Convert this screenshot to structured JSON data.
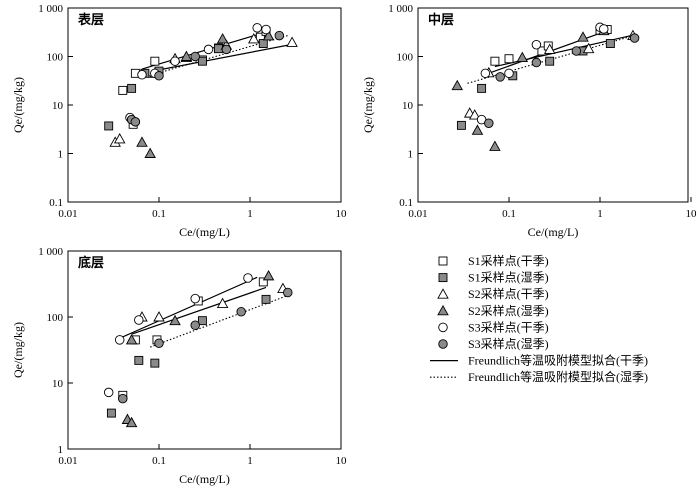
{
  "chart_data": [
    {
      "type": "scatter",
      "title": "表层",
      "xlabel": "Ce/(mg/L)",
      "ylabel": "Qe/(mg/kg)",
      "x_scale": "log",
      "y_scale": "log",
      "xlim": [
        0.01,
        10
      ],
      "ylim": [
        0.1,
        1000
      ],
      "x_ticks": [
        "0.01",
        "0.1",
        "1",
        "10"
      ],
      "y_ticks": [
        "0.1",
        "1",
        "10",
        "100",
        "1 000"
      ],
      "series": [
        {
          "name": "S1采样点(干季)",
          "points": [
            [
              0.04,
              20
            ],
            [
              0.052,
              4
            ],
            [
              0.055,
              45
            ],
            [
              0.09,
              80
            ],
            [
              0.3,
              85
            ],
            [
              0.45,
              150
            ],
            [
              1.3,
              250
            ],
            [
              1.5,
              330
            ]
          ]
        },
        {
          "name": "S1采样点(湿季)",
          "points": [
            [
              0.028,
              3.7
            ],
            [
              0.05,
              22
            ],
            [
              0.07,
              45
            ],
            [
              0.1,
              50
            ],
            [
              0.3,
              80
            ],
            [
              0.45,
              145
            ],
            [
              1.4,
              185
            ]
          ]
        },
        {
          "name": "S2采样点(干季)",
          "points": [
            [
              0.033,
              1.7
            ],
            [
              0.037,
              2.0
            ],
            [
              0.15,
              90
            ],
            [
              0.2,
              95
            ],
            [
              0.55,
              170
            ],
            [
              1.1,
              230
            ],
            [
              2.9,
              195
            ]
          ]
        },
        {
          "name": "S2采样点(湿季)",
          "points": [
            [
              0.065,
              1.7
            ],
            [
              0.08,
              1.0
            ],
            [
              0.09,
              45
            ],
            [
              0.2,
              100
            ],
            [
              0.5,
              230
            ],
            [
              1.6,
              265
            ]
          ]
        },
        {
          "name": "S3采样点(干季)",
          "points": [
            [
              0.048,
              5.5
            ],
            [
              0.055,
              4.5
            ],
            [
              0.065,
              42
            ],
            [
              0.09,
              45
            ],
            [
              0.15,
              80
            ],
            [
              0.35,
              140
            ],
            [
              1.2,
              390
            ],
            [
              1.5,
              360
            ]
          ]
        },
        {
          "name": "S3采样点(湿季)",
          "points": [
            [
              0.05,
              5
            ],
            [
              0.055,
              4.5
            ],
            [
              0.1,
              40
            ],
            [
              0.25,
              100
            ],
            [
              0.55,
              140
            ],
            [
              2.1,
              270
            ]
          ]
        }
      ],
      "fit_lines": [
        {
          "name": "Freundlich等温吸附模型拟合(干季)",
          "style": "solid",
          "segments": [
            [
              [
                0.065,
                55
              ],
              [
                1.6,
                330
              ]
            ],
            [
              [
                0.085,
                50
              ],
              [
                3.0,
                180
              ]
            ]
          ]
        },
        {
          "name": "Freundlich等温吸附模型拟合(湿季)",
          "style": "dotted",
          "segments": [
            [
              [
                0.07,
                38
              ],
              [
                2.6,
                270
              ]
            ]
          ]
        }
      ]
    },
    {
      "type": "scatter",
      "title": "中层",
      "xlabel": "Ce/(mg/L)",
      "ylabel": "Qe/(mg/kg)",
      "x_scale": "log",
      "y_scale": "log",
      "xlim": [
        0.01,
        10
      ],
      "ylim": [
        0.1,
        1000
      ],
      "x_ticks": [
        "0.01",
        "0.1",
        "1",
        "10"
      ],
      "y_ticks": [
        "0.1",
        "1",
        "10",
        "100",
        "1 000"
      ],
      "series": [
        {
          "name": "S1采样点(干季)",
          "points": [
            [
              0.07,
              80
            ],
            [
              0.1,
              90
            ],
            [
              0.23,
              130
            ],
            [
              0.27,
              165
            ],
            [
              1.0,
              350
            ],
            [
              1.2,
              360
            ]
          ]
        },
        {
          "name": "S1采样点(湿季)",
          "points": [
            [
              0.03,
              3.8
            ],
            [
              0.05,
              22
            ],
            [
              0.11,
              40
            ],
            [
              0.28,
              80
            ],
            [
              0.65,
              130
            ],
            [
              1.3,
              185
            ]
          ]
        },
        {
          "name": "S2采样点(干季)",
          "points": [
            [
              0.037,
              6.8
            ],
            [
              0.042,
              6.2
            ],
            [
              0.06,
              46
            ],
            [
              0.28,
              140
            ],
            [
              0.75,
              145
            ],
            [
              2.3,
              270
            ]
          ]
        },
        {
          "name": "S2采样点(湿季)",
          "points": [
            [
              0.027,
              25
            ],
            [
              0.045,
              3.0
            ],
            [
              0.07,
              1.4
            ],
            [
              0.14,
              95
            ],
            [
              0.65,
              250
            ],
            [
              1.1,
              340
            ]
          ]
        },
        {
          "name": "S3采样点(干季)",
          "points": [
            [
              0.05,
              5
            ],
            [
              0.055,
              45
            ],
            [
              0.1,
              45
            ],
            [
              0.2,
              175
            ],
            [
              1.0,
              400
            ],
            [
              1.1,
              370
            ]
          ]
        },
        {
          "name": "S3采样点(湿季)",
          "points": [
            [
              0.06,
              4.2
            ],
            [
              0.08,
              38
            ],
            [
              0.2,
              75
            ],
            [
              0.55,
              130
            ],
            [
              2.4,
              240
            ]
          ]
        }
      ],
      "fit_lines": [
        {
          "name": "Freundlich等温吸附模型拟合(干季)",
          "style": "solid",
          "segments": [
            [
              [
                0.05,
                40
              ],
              [
                1.3,
                360
              ]
            ],
            [
              [
                0.07,
                62
              ],
              [
                2.2,
                270
              ]
            ]
          ]
        },
        {
          "name": "Freundlich等温吸附模型拟合(湿季)",
          "style": "dotted",
          "segments": [
            [
              [
                0.035,
                28
              ],
              [
                2.2,
                260
              ]
            ]
          ]
        }
      ]
    },
    {
      "type": "scatter",
      "title": "底层",
      "xlabel": "Ce/(mg/L)",
      "ylabel": "Qe/(mg/kg)",
      "x_scale": "log",
      "y_scale": "log",
      "xlim": [
        0.01,
        10
      ],
      "ylim": [
        1,
        1000
      ],
      "x_ticks": [
        "0.01",
        "0.1",
        "1",
        "10"
      ],
      "y_ticks": [
        "1",
        "10",
        "100",
        "1 000"
      ],
      "series": [
        {
          "name": "S1采样点(干季)",
          "points": [
            [
              0.04,
              6.5
            ],
            [
              0.055,
              45
            ],
            [
              0.095,
              45
            ],
            [
              0.27,
              175
            ],
            [
              1.4,
              340
            ]
          ]
        },
        {
          "name": "S1采样点(湿季)",
          "points": [
            [
              0.03,
              3.5
            ],
            [
              0.06,
              22
            ],
            [
              0.09,
              20
            ],
            [
              0.3,
              88
            ],
            [
              1.5,
              185
            ]
          ]
        },
        {
          "name": "S2采样点(干季)",
          "points": [
            [
              0.065,
              100
            ],
            [
              0.1,
              100
            ],
            [
              0.5,
              160
            ],
            [
              2.3,
              270
            ]
          ]
        },
        {
          "name": "S2采样点(湿季)",
          "points": [
            [
              0.045,
              2.8
            ],
            [
              0.05,
              2.5
            ],
            [
              0.05,
              45
            ],
            [
              0.15,
              88
            ],
            [
              1.6,
              420
            ]
          ]
        },
        {
          "name": "S3采样点(干季)",
          "points": [
            [
              0.028,
              7.2
            ],
            [
              0.037,
              45
            ],
            [
              0.06,
              90
            ],
            [
              0.25,
              190
            ],
            [
              0.95,
              390
            ]
          ]
        },
        {
          "name": "S3采样点(湿季)",
          "points": [
            [
              0.04,
              5.8
            ],
            [
              0.1,
              40
            ],
            [
              0.25,
              75
            ],
            [
              0.8,
              120
            ],
            [
              2.6,
              235
            ]
          ]
        }
      ],
      "fit_lines": [
        {
          "name": "Freundlich等温吸附模型拟合(干季)",
          "style": "solid",
          "segments": [
            [
              [
                0.04,
                50
              ],
              [
                1.2,
                400
              ]
            ],
            [
              [
                0.05,
                55
              ],
              [
                1.5,
                280
              ]
            ]
          ]
        },
        {
          "name": "Freundlich等温吸附模型拟合(湿季)",
          "style": "dotted",
          "segments": [
            [
              [
                0.08,
                35
              ],
              [
                2.8,
                220
              ]
            ]
          ]
        }
      ]
    }
  ],
  "legend": {
    "items": [
      {
        "label": "S1采样点(干季)",
        "marker": "square",
        "filled": false
      },
      {
        "label": "S1采样点(湿季)",
        "marker": "square",
        "filled": true
      },
      {
        "label": "S2采样点(干季)",
        "marker": "triangle",
        "filled": false
      },
      {
        "label": "S2采样点(湿季)",
        "marker": "triangle",
        "filled": true
      },
      {
        "label": "S3采样点(干季)",
        "marker": "circle",
        "filled": false
      },
      {
        "label": "S3采样点(湿季)",
        "marker": "circle",
        "filled": true
      },
      {
        "label": "Freundlich等温吸附模型拟合(干季)",
        "marker": "solid-line"
      },
      {
        "label": "Freundlich等温吸附模型拟合(湿季)",
        "marker": "dotted-line"
      }
    ]
  },
  "colors": {
    "axis": "#000000",
    "hollow_fill": "#ffffff",
    "square_fill": "#8a8a8a",
    "triangle_fill": "#8a8a8a",
    "circle_fill": "#8a8a8a"
  }
}
